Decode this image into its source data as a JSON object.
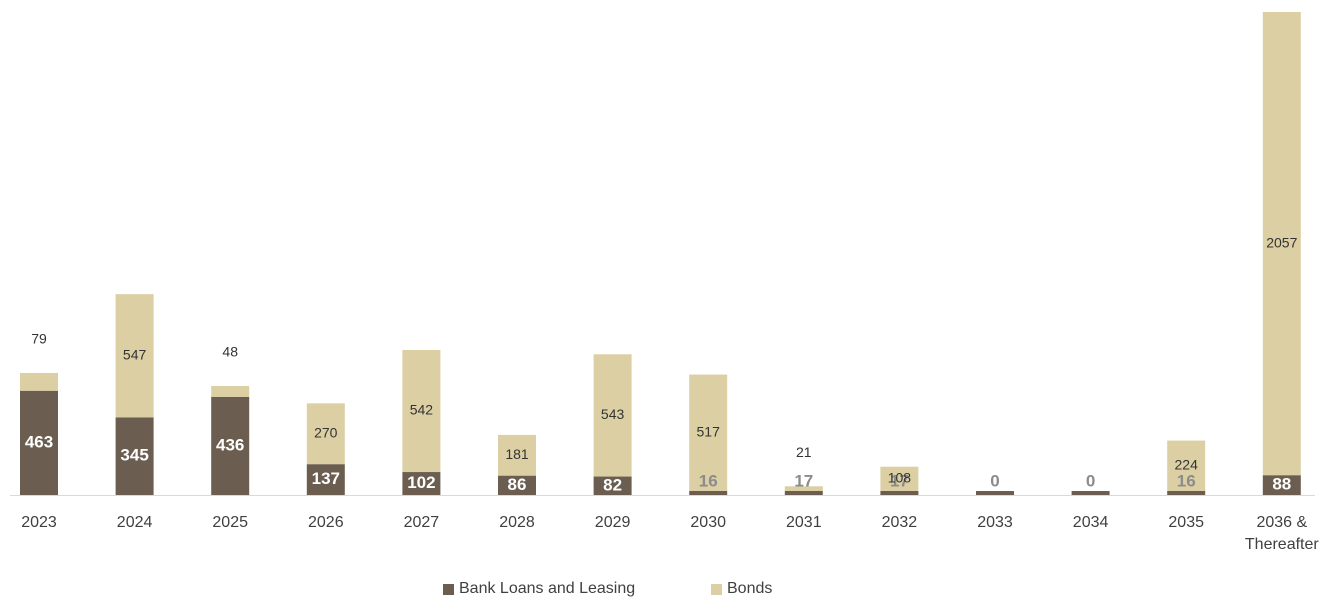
{
  "chart_data": {
    "type": "bar",
    "stacked": true,
    "categories": [
      "2023",
      "2024",
      "2025",
      "2026",
      "2027",
      "2028",
      "2029",
      "2030",
      "2031",
      "2032",
      "2033",
      "2034",
      "2035",
      "2036 & Thereafter"
    ],
    "series": [
      {
        "name": "Bank Loans and Leasing",
        "color": "#6b5e50",
        "values": [
          463,
          345,
          436,
          137,
          102,
          86,
          82,
          16,
          17,
          17,
          0,
          0,
          16,
          88
        ]
      },
      {
        "name": "Bonds",
        "color": "#dccfa4",
        "values": [
          79,
          547,
          48,
          270,
          542,
          181,
          543,
          517,
          21,
          108,
          0,
          0,
          224,
          2057
        ]
      }
    ],
    "legend_position": "bottom",
    "grid": false
  }
}
